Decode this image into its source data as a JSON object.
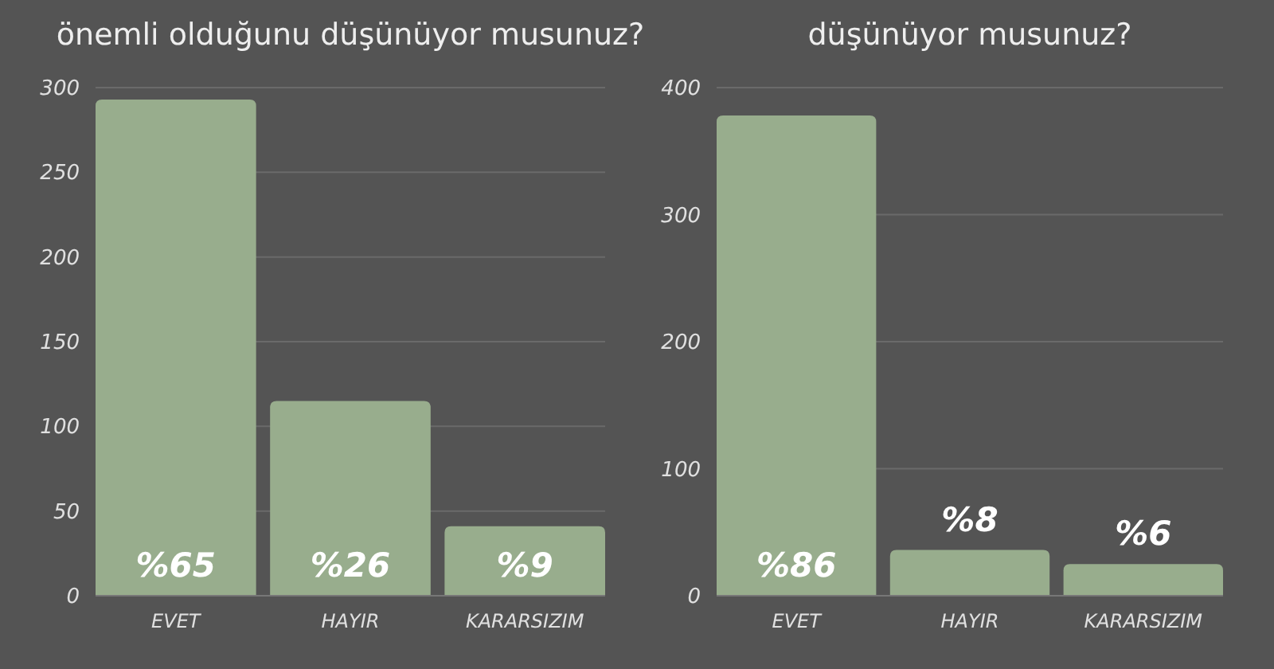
{
  "chart_data": [
    {
      "type": "bar",
      "title": "önemli olduğunu düşünüyor musunuz?",
      "categories": [
        "EVET",
        "HAYIR",
        "KARARSIZIM"
      ],
      "values": [
        293,
        115,
        41
      ],
      "color": "#98ad8d",
      "ylim": [
        0,
        300
      ],
      "yticks": [
        0,
        50,
        100,
        150,
        200,
        250,
        300
      ],
      "grid": "y",
      "annotations": [
        "%65",
        "%26",
        "%9"
      ]
    },
    {
      "type": "bar",
      "title": "düşünüyor musunuz?",
      "categories": [
        "EVET",
        "HAYIR",
        "KARARSIZIM"
      ],
      "values": [
        378,
        36,
        25
      ],
      "color": "#98ad8d",
      "ylim": [
        0,
        400
      ],
      "yticks": [
        0,
        100,
        200,
        300,
        400
      ],
      "grid": "y",
      "annotations": [
        "%86",
        "%8",
        "%6"
      ]
    }
  ]
}
